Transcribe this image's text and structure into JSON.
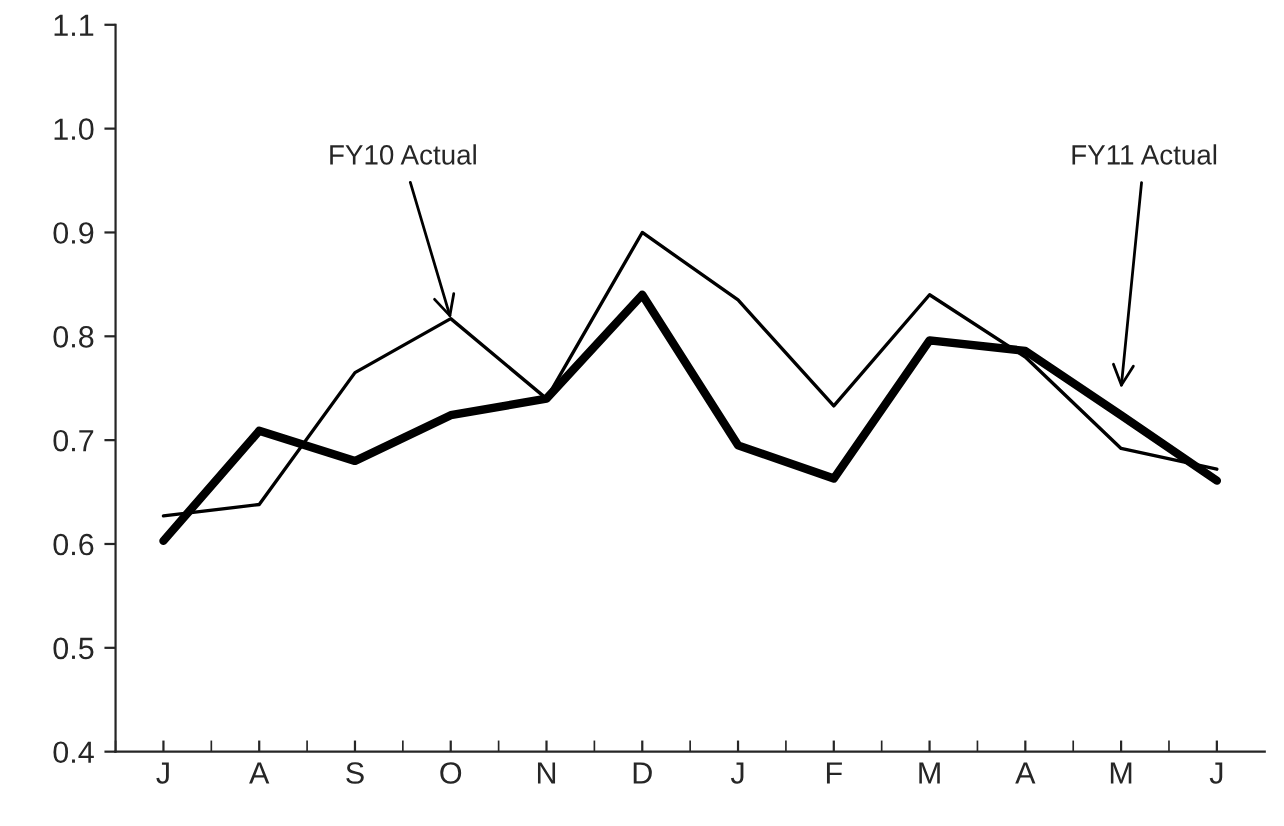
{
  "chart_data": {
    "type": "line",
    "categories": [
      "J",
      "A",
      "S",
      "O",
      "N",
      "D",
      "J",
      "F",
      "M",
      "A",
      "M",
      "J"
    ],
    "series": [
      {
        "color": "#000000",
        "values": [
          0.627,
          0.638,
          0.765,
          0.817,
          0.74,
          0.9,
          0.835,
          0.733,
          0.84,
          0.78,
          0.692,
          0.672
        ]
      },
      {
        "color": "#000000",
        "values": [
          0.603,
          0.709,
          0.68,
          0.724,
          0.74,
          0.84,
          0.695,
          0.663,
          0.796,
          0.786,
          0.724,
          0.661
        ]
      }
    ],
    "ylim": [
      0.4,
      1.1
    ],
    "yticks": [
      {
        "value": 0.4,
        "label": "0.4"
      },
      {
        "value": 0.5,
        "label": "0.5"
      },
      {
        "value": 0.6,
        "label": "0.6"
      },
      {
        "value": 0.7,
        "label": "0.7"
      },
      {
        "value": 0.8,
        "label": "0.8"
      },
      {
        "value": 0.9,
        "label": "0.9"
      },
      {
        "value": 1.0,
        "label": "1.0"
      },
      {
        "value": 1.1,
        "label": "1.1"
      }
    ],
    "annotations": [
      {
        "text": "FY10 Actual",
        "x": "O",
        "y": 0.817
      },
      "FY11 Actual"
    ],
    "grid": false,
    "legend": false,
    "marker": "none",
    "line_style": "solid"
  }
}
